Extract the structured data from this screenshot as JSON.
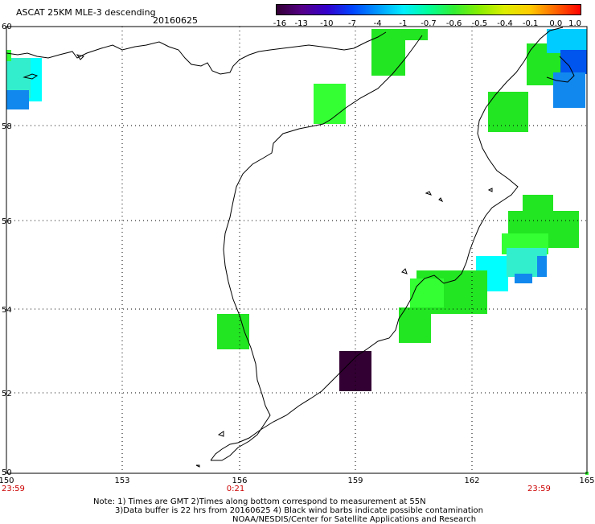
{
  "header": {
    "title": "ASCAT 25KM MLE-3 descending",
    "date": "20160625"
  },
  "colorbar": {
    "labels": [
      "-16",
      "-13",
      "-10",
      "-7",
      "-4",
      "-1",
      "-0.7",
      "-0.6",
      "-0.5",
      "-0.4",
      "-0.1",
      "0.0",
      "1.0"
    ],
    "colors": [
      "#330033",
      "#550088",
      "#3300cc",
      "#0044ff",
      "#0099ff",
      "#00eeff",
      "#00ff99",
      "#33ee33",
      "#88ee00",
      "#ddee00",
      "#ffcc00",
      "#ff6600",
      "#ff0000"
    ]
  },
  "axes": {
    "lat_labels": [
      "60",
      "58",
      "56",
      "54",
      "52",
      "50"
    ],
    "lon_labels": [
      "150",
      "153",
      "156",
      "159",
      "162",
      "165"
    ],
    "time_labels": [
      "23:59",
      "0:21",
      "23:59"
    ]
  },
  "swath_colors": {
    "green": "#22e622",
    "bright_green": "#33ff33",
    "cyan": "#00ffff",
    "teal": "#33eecc",
    "light_blue": "#00ccff",
    "blue": "#1188ee",
    "deep_blue": "#0055ee",
    "dark_purple": "#330033"
  },
  "notes": {
    "line1": "Note: 1) Times are GMT 2)Times along bottom correspond to measurement at 55N",
    "line2": "3)Data buffer is 22 hrs from 20160625 4) Black wind barbs indicate possible contamination",
    "line3": "NOAA/NESDIS/Center for Satellite Applications and Research"
  }
}
